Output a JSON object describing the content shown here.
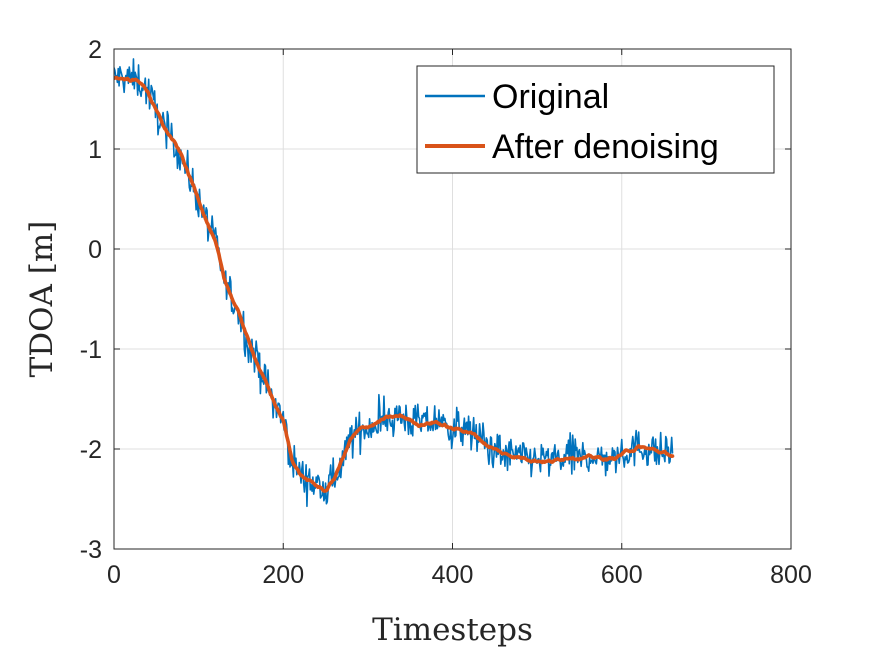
{
  "chart_data": {
    "type": "line",
    "title": "",
    "xlabel": "Timesteps",
    "ylabel": "TDOA [m]",
    "xlim": [
      0,
      800
    ],
    "ylim": [
      -3,
      2
    ],
    "xticks": [
      0,
      200,
      400,
      600,
      800
    ],
    "yticks": [
      -3,
      -2,
      -1,
      0,
      1,
      2
    ],
    "xtick_labels": [
      "0",
      "200",
      "400",
      "600",
      "800"
    ],
    "ytick_labels": [
      "-3",
      "-2",
      "-1",
      "0",
      "1",
      "2"
    ],
    "grid": true,
    "legend_position": "top-right",
    "colors": {
      "original": "#0072BD",
      "denoised": "#D95319",
      "grid": "#dfdfdf",
      "axis": "#262626"
    },
    "series": [
      {
        "name": "Original",
        "style": "noisy",
        "noise_amplitude": 0.12,
        "x": [
          0,
          20,
          30,
          40,
          50,
          60,
          70,
          80,
          90,
          100,
          110,
          120,
          130,
          140,
          150,
          160,
          170,
          180,
          190,
          200,
          210,
          220,
          230,
          240,
          250,
          260,
          270,
          280,
          290,
          300,
          320,
          340,
          360,
          380,
          400,
          420,
          440,
          460,
          480,
          500,
          520,
          540,
          560,
          580,
          590,
          600,
          620,
          640,
          660
        ],
        "y": [
          1.72,
          1.7,
          1.68,
          1.58,
          1.38,
          1.2,
          1.08,
          0.92,
          0.7,
          0.5,
          0.28,
          0.05,
          -0.3,
          -0.5,
          -0.7,
          -0.95,
          -1.15,
          -1.35,
          -1.55,
          -1.72,
          -2.1,
          -2.25,
          -2.32,
          -2.38,
          -2.42,
          -2.3,
          -2.1,
          -1.9,
          -1.82,
          -1.78,
          -1.7,
          -1.68,
          -1.75,
          -1.72,
          -1.8,
          -1.82,
          -1.95,
          -2.05,
          -2.08,
          -2.1,
          -2.12,
          -2.06,
          -2.08,
          -2.1,
          -2.1,
          -2.05,
          -1.98,
          -2.02,
          -2.07
        ]
      },
      {
        "name": "After denoising",
        "style": "smooth",
        "x": [
          0,
          20,
          30,
          40,
          50,
          60,
          70,
          80,
          90,
          100,
          110,
          120,
          130,
          140,
          150,
          160,
          170,
          180,
          190,
          200,
          210,
          220,
          230,
          240,
          250,
          260,
          270,
          280,
          290,
          300,
          320,
          340,
          360,
          380,
          400,
          420,
          440,
          460,
          480,
          500,
          520,
          540,
          560,
          580,
          590,
          600,
          620,
          640,
          660
        ],
        "y": [
          1.72,
          1.7,
          1.68,
          1.58,
          1.38,
          1.2,
          1.08,
          0.92,
          0.7,
          0.5,
          0.28,
          0.05,
          -0.3,
          -0.5,
          -0.7,
          -0.95,
          -1.15,
          -1.35,
          -1.55,
          -1.72,
          -2.1,
          -2.25,
          -2.32,
          -2.38,
          -2.42,
          -2.3,
          -2.1,
          -1.9,
          -1.82,
          -1.78,
          -1.7,
          -1.68,
          -1.75,
          -1.72,
          -1.8,
          -1.82,
          -1.95,
          -2.05,
          -2.08,
          -2.1,
          -2.12,
          -2.06,
          -2.08,
          -2.1,
          -2.1,
          -2.05,
          -1.98,
          -2.02,
          -2.07
        ]
      }
    ]
  }
}
